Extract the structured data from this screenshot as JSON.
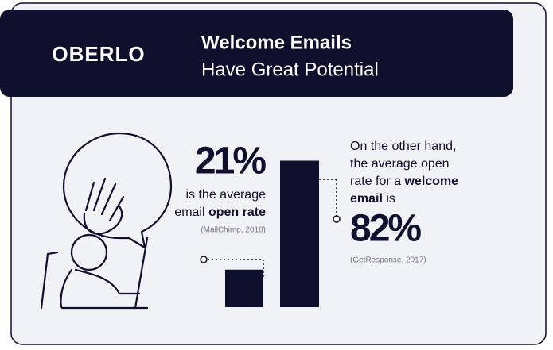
{
  "chart_data": {
    "type": "bar",
    "brand": "OBERLO",
    "title": "Welcome Emails",
    "subtitle": "Have Great Potential",
    "values": [
      21,
      82
    ],
    "value_labels": [
      "21%",
      "82%"
    ],
    "color": "#0f0f2e",
    "notes": [
      {
        "lines": [
          {
            "parts": [
              {
                "text": "is the average",
                "bold": false
              }
            ]
          },
          {
            "parts": [
              {
                "text": "email ",
                "bold": false
              },
              {
                "text": "open rate",
                "bold": true
              }
            ]
          }
        ],
        "source": "(MailChimp, 2018)"
      },
      {
        "lines": [
          {
            "parts": [
              {
                "text": "On the other hand,",
                "bold": false
              }
            ]
          },
          {
            "parts": [
              {
                "text": "the average open",
                "bold": false
              }
            ]
          },
          {
            "parts": [
              {
                "text": "rate for a ",
                "bold": false
              },
              {
                "text": "welcome",
                "bold": true
              }
            ]
          },
          {
            "parts": [
              {
                "text": "email",
                "bold": true
              },
              {
                "text": " is",
                "bold": false
              }
            ]
          }
        ],
        "source": "(GetResponse, 2017)"
      }
    ]
  }
}
